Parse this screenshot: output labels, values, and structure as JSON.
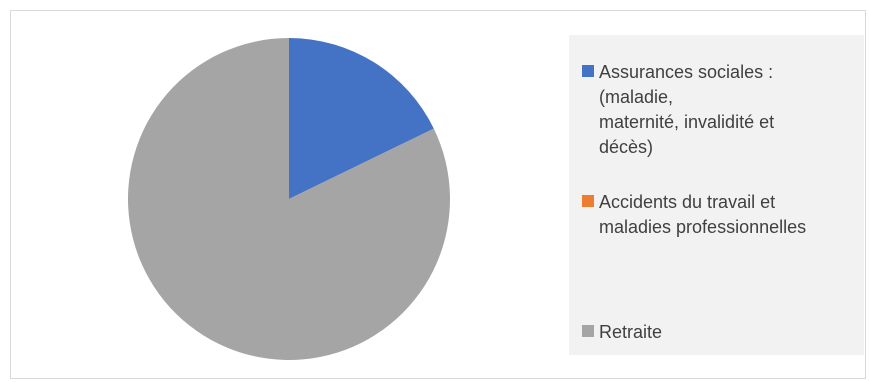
{
  "chart_data": {
    "type": "pie",
    "title": "",
    "categories": [
      "Assurances sociales :\n(maladie,\nmaternité, invalidité et\ndécès)",
      "Accidents du travail et\nmaladies professionnelles",
      "Retraite"
    ],
    "values": [
      17.8,
      0,
      82.2
    ],
    "colors": [
      "#4472c4",
      "#ed7d31",
      "#a5a5a5"
    ],
    "legend": {
      "placement": "right"
    }
  }
}
